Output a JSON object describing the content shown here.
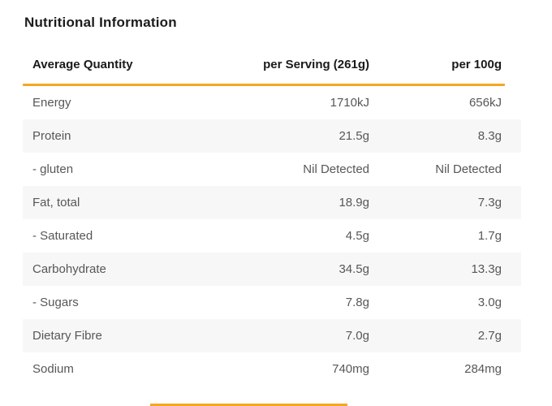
{
  "page": {
    "title": "Nutritional Information"
  },
  "table": {
    "accent_color": "#F5A623",
    "stripe_color": "#F7F7F7",
    "columns": [
      "Average Quantity",
      "per Serving (261g)",
      "per 100g"
    ],
    "rows": [
      {
        "label": "Energy",
        "per_serving": "1710kJ",
        "per_100g": "656kJ"
      },
      {
        "label": "Protein",
        "per_serving": "21.5g",
        "per_100g": "8.3g"
      },
      {
        "label": "- gluten",
        "per_serving": "Nil Detected",
        "per_100g": "Nil Detected"
      },
      {
        "label": "Fat, total",
        "per_serving": "18.9g",
        "per_100g": "7.3g"
      },
      {
        "label": "- Saturated",
        "per_serving": "4.5g",
        "per_100g": "1.7g"
      },
      {
        "label": "Carbohydrate",
        "per_serving": "34.5g",
        "per_100g": "13.3g"
      },
      {
        "label": "- Sugars",
        "per_serving": "7.8g",
        "per_100g": "3.0g"
      },
      {
        "label": "Dietary Fibre",
        "per_serving": "7.0g",
        "per_100g": "2.7g"
      },
      {
        "label": "Sodium",
        "per_serving": "740mg",
        "per_100g": "284mg"
      }
    ]
  }
}
